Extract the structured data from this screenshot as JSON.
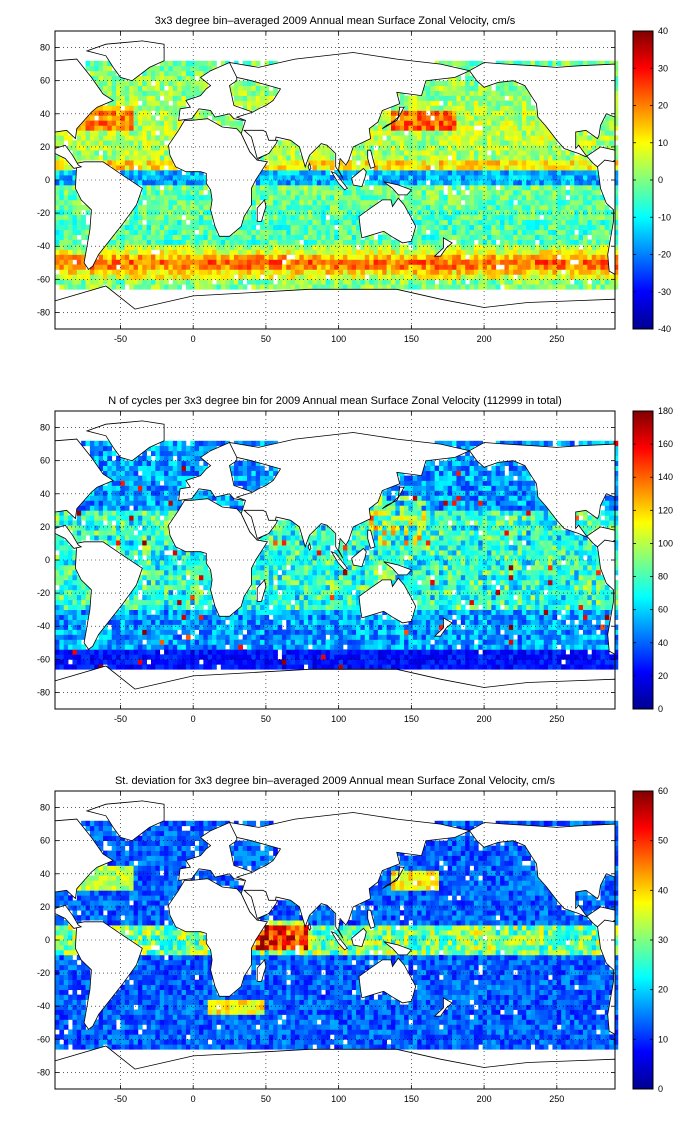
{
  "chart_data": [
    {
      "type": "heatmap",
      "title": "3x3 degree bin–averaged 2009 Annual mean Surface Zonal Velocity, cm/s",
      "xlabel": "",
      "ylabel": "",
      "xlim": [
        -95,
        290
      ],
      "ylim": [
        -90,
        90
      ],
      "xticks": [
        -50,
        0,
        50,
        100,
        150,
        200,
        250
      ],
      "yticks": [
        80,
        60,
        40,
        20,
        0,
        -20,
        -40,
        -60,
        -80
      ],
      "grid": true,
      "bin_size_deg": 3,
      "colorbar": {
        "min": -40,
        "max": 40,
        "ticks": [
          40,
          30,
          20,
          10,
          0,
          -10,
          -20,
          -30,
          -40
        ],
        "colormap": "jet"
      },
      "field": "zonal_velocity",
      "colors": {
        "low": "#00008f",
        "mid": "#80ff80",
        "high": "#800000"
      }
    },
    {
      "type": "heatmap",
      "title": "N of cycles per 3x3 degree bin for 2009 Annual mean Surface Zonal Velocity (112999 in total)",
      "xlabel": "",
      "ylabel": "",
      "xlim": [
        -95,
        290
      ],
      "ylim": [
        -90,
        90
      ],
      "xticks": [
        -50,
        0,
        50,
        100,
        150,
        200,
        250
      ],
      "yticks": [
        80,
        60,
        40,
        20,
        0,
        -20,
        -40,
        -60,
        -80
      ],
      "grid": true,
      "bin_size_deg": 3,
      "total_cycles": 112999,
      "colorbar": {
        "min": 0,
        "max": 180,
        "ticks": [
          180,
          160,
          140,
          120,
          100,
          80,
          60,
          40,
          20,
          0
        ],
        "colormap": "jet"
      },
      "field": "cycle_count",
      "colors": {
        "low": "#00008f",
        "mid": "#80ff80",
        "high": "#800000"
      }
    },
    {
      "type": "heatmap",
      "title": "St. deviation for 3x3 degree bin–averaged 2009 Annual mean Surface Zonal Velocity, cm/s",
      "xlabel": "",
      "ylabel": "",
      "xlim": [
        -95,
        290
      ],
      "ylim": [
        -90,
        90
      ],
      "xticks": [
        -50,
        0,
        50,
        100,
        150,
        200,
        250
      ],
      "yticks": [
        80,
        60,
        40,
        20,
        0,
        -20,
        -40,
        -60,
        -80
      ],
      "grid": true,
      "bin_size_deg": 3,
      "colorbar": {
        "min": 0,
        "max": 60,
        "ticks": [
          60,
          50,
          40,
          30,
          20,
          10,
          0
        ],
        "colormap": "jet"
      },
      "field": "std_deviation",
      "colors": {
        "low": "#00008f",
        "mid": "#80ff80",
        "high": "#800000"
      }
    }
  ]
}
